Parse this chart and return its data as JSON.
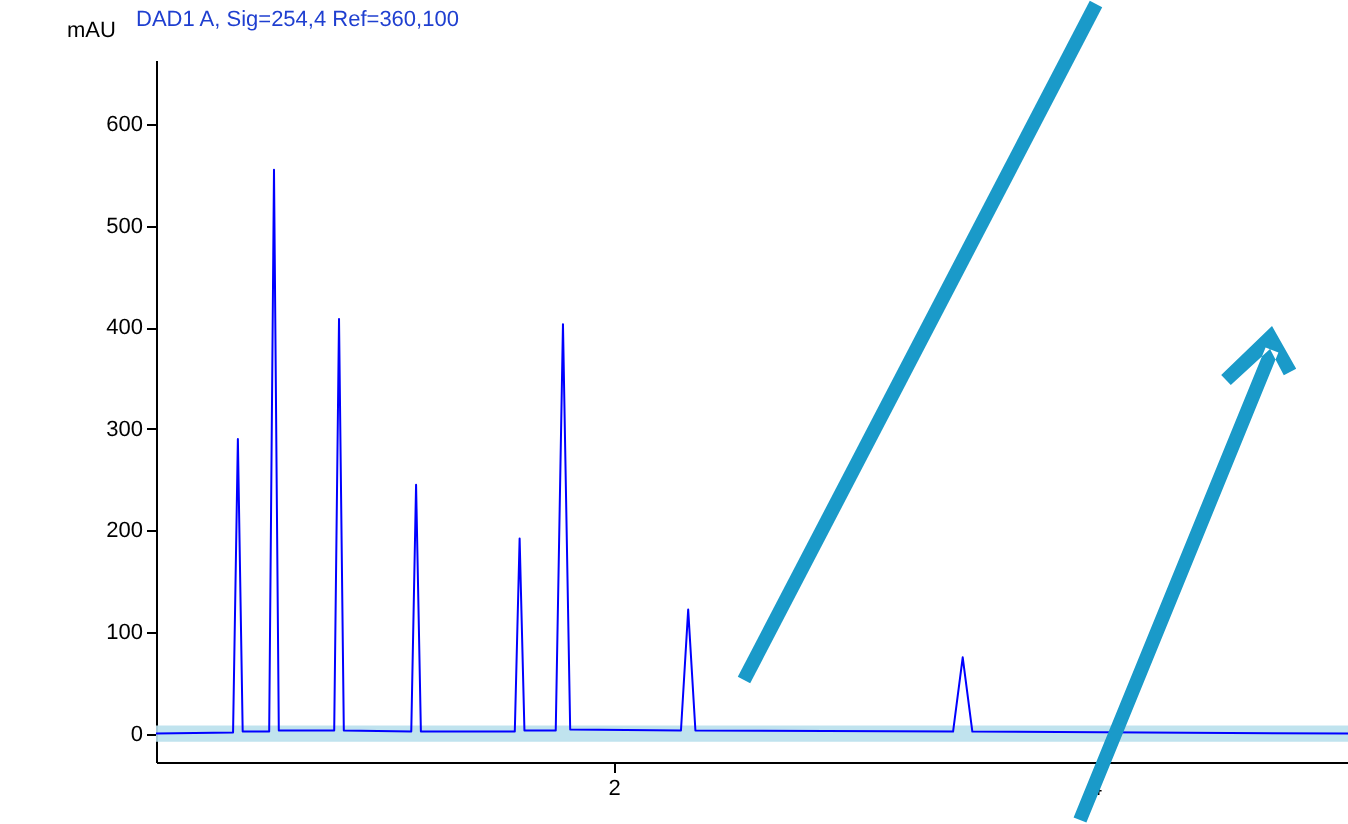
{
  "chart_data": {
    "type": "line",
    "title": "DAD1 A, Sig=254,4 Ref=360,100",
    "ylabel": "mAU",
    "x": [
      0.1,
      0.42,
      0.44,
      0.46,
      0.57,
      0.59,
      0.61,
      0.84,
      0.86,
      0.88,
      1.16,
      1.18,
      1.2,
      1.59,
      1.61,
      1.63,
      1.76,
      1.79,
      1.82,
      2.28,
      2.31,
      2.34,
      3.41,
      3.45,
      3.49,
      5.05
    ],
    "series": [
      {
        "color": "#0000ff",
        "values": [
          0,
          1,
          290,
          2,
          2,
          555,
          3,
          3,
          408,
          3,
          2,
          245,
          2,
          2,
          192,
          3,
          3,
          403,
          4,
          3,
          122,
          3,
          2,
          75,
          2,
          0
        ]
      }
    ],
    "xlim": [
      0.1,
      5.05
    ],
    "xticks": [
      2,
      4
    ],
    "ylim": [
      -28,
      663
    ],
    "yticks": [
      0,
      100,
      200,
      300,
      400,
      500,
      600
    ],
    "grid": false,
    "marker": "none",
    "line_style": "solid",
    "bands": [
      {
        "axis": "y",
        "from": -8,
        "to": 8,
        "color": "#b9e0ec"
      }
    ]
  }
}
